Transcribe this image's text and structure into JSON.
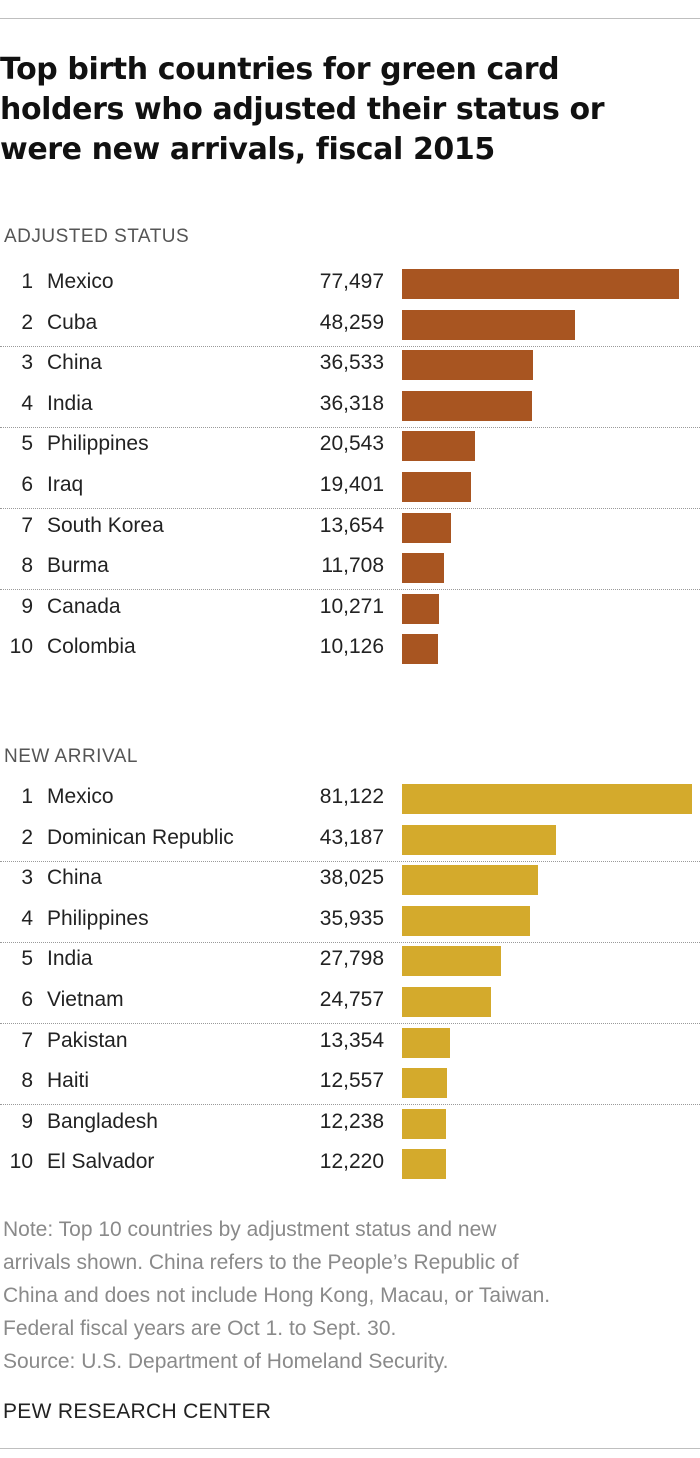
{
  "chart_data": {
    "type": "bar",
    "title": "Top birth countries for green card holders who adjusted their status or were new arrivals, fiscal 2015",
    "orientation": "horizontal",
    "xlim": [
      0,
      81122
    ],
    "panels": [
      {
        "label": "ADJUSTED STATUS",
        "color": "#a85521",
        "rows": [
          {
            "rank": "1",
            "country": "Mexico",
            "value": 77497,
            "value_label": "77,497"
          },
          {
            "rank": "2",
            "country": "Cuba",
            "value": 48259,
            "value_label": "48,259"
          },
          {
            "rank": "3",
            "country": "China",
            "value": 36533,
            "value_label": "36,533"
          },
          {
            "rank": "4",
            "country": "India",
            "value": 36318,
            "value_label": "36,318"
          },
          {
            "rank": "5",
            "country": "Philippines",
            "value": 20543,
            "value_label": "20,543"
          },
          {
            "rank": "6",
            "country": "Iraq",
            "value": 19401,
            "value_label": "19,401"
          },
          {
            "rank": "7",
            "country": "South Korea",
            "value": 13654,
            "value_label": "13,654"
          },
          {
            "rank": "8",
            "country": "Burma",
            "value": 11708,
            "value_label": "11,708"
          },
          {
            "rank": "9",
            "country": "Canada",
            "value": 10271,
            "value_label": "10,271"
          },
          {
            "rank": "10",
            "country": "Colombia",
            "value": 10126,
            "value_label": "10,126"
          }
        ]
      },
      {
        "label": "NEW ARRIVAL",
        "color": "#d4aa2c",
        "rows": [
          {
            "rank": "1",
            "country": "Mexico",
            "value": 81122,
            "value_label": "81,122"
          },
          {
            "rank": "2",
            "country": "Dominican Republic",
            "value": 43187,
            "value_label": "43,187"
          },
          {
            "rank": "3",
            "country": "China",
            "value": 38025,
            "value_label": "38,025"
          },
          {
            "rank": "4",
            "country": "Philippines",
            "value": 35935,
            "value_label": "35,935"
          },
          {
            "rank": "5",
            "country": "India",
            "value": 27798,
            "value_label": "27,798"
          },
          {
            "rank": "6",
            "country": "Vietnam",
            "value": 24757,
            "value_label": "24,757"
          },
          {
            "rank": "7",
            "country": "Pakistan",
            "value": 13354,
            "value_label": "13,354"
          },
          {
            "rank": "8",
            "country": "Haiti",
            "value": 12557,
            "value_label": "12,557"
          },
          {
            "rank": "9",
            "country": "Bangladesh",
            "value": 12238,
            "value_label": "12,238"
          },
          {
            "rank": "10",
            "country": "El Salvador",
            "value": 12220,
            "value_label": "12,220"
          }
        ]
      }
    ]
  },
  "note": {
    "lines": [
      "Note: Top 10 countries by adjustment status and new",
      "arrivals shown. China refers to the People’s Republic of",
      "China and does not include Hong Kong, Macau, or Taiwan.",
      "Federal fiscal years are Oct 1. to Sept. 30.",
      "Source: U.S. Department of Homeland Security."
    ]
  },
  "brand": "PEW RESEARCH CENTER"
}
